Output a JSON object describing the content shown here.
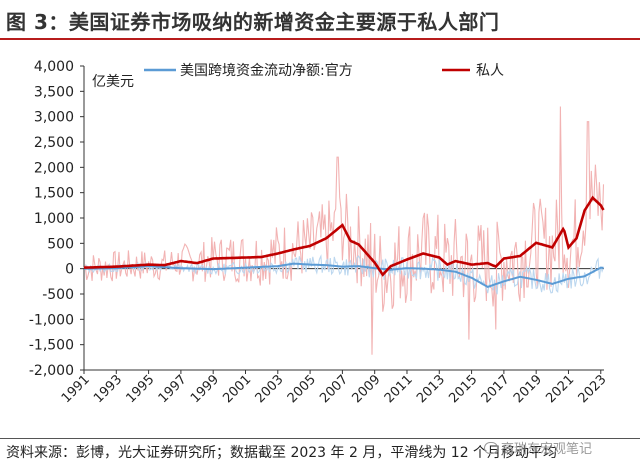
{
  "title": "图 3：美国证券市场吸纳的新增资金主要源于私人部门",
  "footer": "资料来源：彭博，光大证券研究所；数据截至 2023 年 2 月，平滑线为 12 个月移动平均",
  "watermark": "高瑞东宏观笔记",
  "colors": {
    "official_smooth": "#5b9bd5",
    "official_raw": "#bcd7ef",
    "private_smooth": "#c00000",
    "private_raw": "#f2b3b3",
    "title_rule": "#b71c1c"
  },
  "chart_data": {
    "type": "line",
    "yunit": "亿美元",
    "ylim": [
      -2000,
      4000
    ],
    "yticks": [
      "4,000",
      "3,500",
      "3,000",
      "2,500",
      "2,000",
      "1,500",
      "1,000",
      "500",
      "0",
      "-500",
      "-1,000",
      "-1,500",
      "-2,000"
    ],
    "xlim": [
      1991,
      2023.2
    ],
    "xticks": [
      "1991",
      "1993",
      "1995",
      "1997",
      "1999",
      "2001",
      "2003",
      "2005",
      "2007",
      "2009",
      "2011",
      "2013",
      "2015",
      "2017",
      "2019",
      "2021",
      "2023"
    ],
    "legend": [
      "美国跨境资金流动净额:官方",
      "私人"
    ],
    "series": [
      {
        "name": "美国跨境资金流动净额:官方",
        "smooth": [
          [
            1991,
            0
          ],
          [
            1993,
            10
          ],
          [
            1995,
            50
          ],
          [
            1997,
            10
          ],
          [
            1999,
            -10
          ],
          [
            2001,
            20
          ],
          [
            2003,
            50
          ],
          [
            2004,
            100
          ],
          [
            2005,
            80
          ],
          [
            2006,
            70
          ],
          [
            2007,
            40
          ],
          [
            2008,
            50
          ],
          [
            2009,
            10
          ],
          [
            2010,
            -20
          ],
          [
            2011,
            10
          ],
          [
            2012,
            0
          ],
          [
            2013,
            -20
          ],
          [
            2014,
            -60
          ],
          [
            2015,
            -180
          ],
          [
            2016,
            -360
          ],
          [
            2017,
            -250
          ],
          [
            2018,
            -160
          ],
          [
            2019,
            -220
          ],
          [
            2020,
            -300
          ],
          [
            2021,
            -200
          ],
          [
            2022,
            -150
          ],
          [
            2023,
            20
          ]
        ],
        "raw_amplitude": 220
      },
      {
        "name": "私人",
        "smooth": [
          [
            1991,
            20
          ],
          [
            1993,
            40
          ],
          [
            1995,
            80
          ],
          [
            1996,
            70
          ],
          [
            1997,
            150
          ],
          [
            1998,
            110
          ],
          [
            1999,
            200
          ],
          [
            2001,
            220
          ],
          [
            2002,
            230
          ],
          [
            2003,
            300
          ],
          [
            2004,
            380
          ],
          [
            2005,
            450
          ],
          [
            2006,
            600
          ],
          [
            2007,
            860
          ],
          [
            2007.5,
            550
          ],
          [
            2008,
            480
          ],
          [
            2009,
            120
          ],
          [
            2009.5,
            -120
          ],
          [
            2010,
            50
          ],
          [
            2011,
            180
          ],
          [
            2012,
            300
          ],
          [
            2013,
            220
          ],
          [
            2013.5,
            80
          ],
          [
            2014,
            150
          ],
          [
            2015,
            80
          ],
          [
            2016,
            110
          ],
          [
            2016.5,
            40
          ],
          [
            2017,
            200
          ],
          [
            2018,
            250
          ],
          [
            2019,
            510
          ],
          [
            2020,
            420
          ],
          [
            2020.7,
            800
          ],
          [
            2021,
            420
          ],
          [
            2021.5,
            600
          ],
          [
            2022,
            1150
          ],
          [
            2022.5,
            1400
          ],
          [
            2023,
            1250
          ],
          [
            2023.2,
            1140
          ]
        ],
        "raw_amplitude": 900,
        "raw_peaks": [
          [
            2006.7,
            2200
          ],
          [
            2008.8,
            -1700
          ],
          [
            2014.8,
            -1400
          ],
          [
            2016.5,
            -1200
          ],
          [
            2020.5,
            3200
          ],
          [
            2022.2,
            2900
          ]
        ]
      }
    ]
  }
}
